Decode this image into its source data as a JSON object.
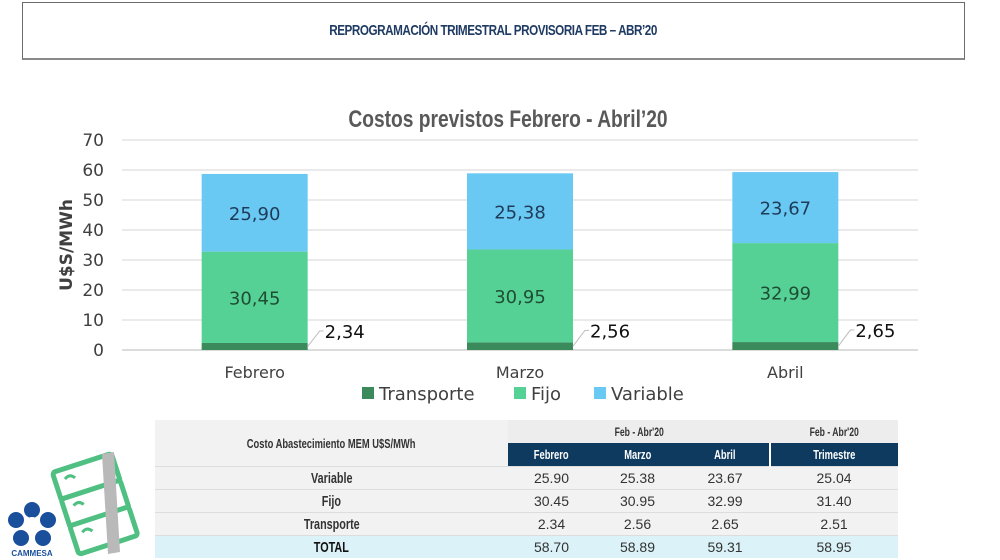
{
  "header": {
    "title": "REPROGRAMACIÓN TRIMESTRAL PROVISORIA FEB – ABR’20"
  },
  "chart_data": {
    "type": "bar",
    "stacked": true,
    "title": "Costos previstos Febrero - Abril’20",
    "xlabel": "",
    "ylabel": "U$S/MWh",
    "ylim": [
      0,
      70
    ],
    "yticks": [
      0,
      10,
      20,
      30,
      40,
      50,
      60,
      70
    ],
    "grid": true,
    "legend_position": "bottom",
    "categories": [
      "Febrero",
      "Marzo",
      "Abril"
    ],
    "series": [
      {
        "name": "Transporte",
        "color": "#3a8a5c",
        "values": [
          2.34,
          2.56,
          2.65
        ],
        "labels": [
          "2,34",
          "2,56",
          "2,65"
        ]
      },
      {
        "name": "Fijo",
        "color": "#56d196",
        "values": [
          30.45,
          30.95,
          32.99
        ],
        "labels": [
          "30,45",
          "30,95",
          "32,99"
        ]
      },
      {
        "name": "Variable",
        "color": "#69c9f3",
        "values": [
          25.9,
          25.38,
          23.67
        ],
        "labels": [
          "25,90",
          "25,38",
          "23,67"
        ]
      }
    ]
  },
  "table": {
    "corner_label": "Costo Abastecimiento MEM U$S/MWh",
    "group_headers": [
      "Feb - Abr'20",
      "Feb - Abr'20"
    ],
    "columns": [
      "Febrero",
      "Marzo",
      "Abril",
      "Trimestre"
    ],
    "rows": [
      {
        "label": "Variable",
        "values": [
          "25.90",
          "25.38",
          "23.67",
          "25.04"
        ]
      },
      {
        "label": "Fijo",
        "values": [
          "30.45",
          "30.95",
          "32.99",
          "31.40"
        ]
      },
      {
        "label": "Transporte",
        "values": [
          "2.34",
          "2.56",
          "2.65",
          "2.51"
        ]
      },
      {
        "label": "TOTAL",
        "values": [
          "58.70",
          "58.89",
          "59.31",
          "58.95"
        ]
      }
    ]
  },
  "logo": {
    "text": "CAMMESA",
    "icon": "cammesa-flower-icon"
  },
  "decoration": {
    "icon": "money-stack-icon"
  }
}
